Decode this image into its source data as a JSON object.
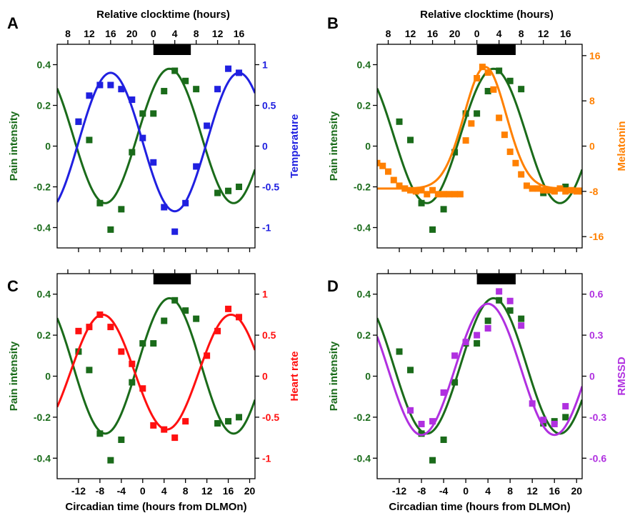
{
  "chart_data": [
    {
      "type": "line",
      "panel": "A",
      "top_label": "Relative clocktime (hours)",
      "top_ticks": [
        "8",
        "12",
        "16",
        "20",
        "0",
        "4",
        "8",
        "12",
        "16"
      ],
      "top_tick_x": [
        -14,
        -10,
        -6,
        -2,
        2,
        6,
        10,
        14,
        18
      ],
      "bottom_label": "",
      "bottom_ticks": [],
      "xlim": [
        -16,
        21
      ],
      "night_bar": [
        2,
        9
      ],
      "ylabel": "Pain intensity",
      "ylim": [
        -0.5,
        0.5
      ],
      "yticks": [
        "-0.4",
        "-0.2",
        "0",
        "0.2",
        "0.4"
      ],
      "ytick_values": [
        -0.4,
        -0.2,
        0,
        0.2,
        0.4
      ],
      "y2label": "Temperature",
      "y2lim": [
        -1.25,
        1.25
      ],
      "y2ticks": [
        "-1",
        "-0.5",
        "0",
        "0.5",
        "1"
      ],
      "y2tick_values": [
        -1,
        -0.5,
        0,
        0.5,
        1
      ],
      "series": [
        {
          "axis": "left",
          "color": "#1a6b1a",
          "curve": {
            "mesor": 0.05,
            "amplitude": 0.33,
            "peak": 5,
            "period": 24
          },
          "points": [
            [
              -12,
              0.12
            ],
            [
              -10,
              0.03
            ],
            [
              -8,
              -0.28
            ],
            [
              -6,
              -0.41
            ],
            [
              -4,
              -0.31
            ],
            [
              -2,
              -0.03
            ],
            [
              0,
              0.16
            ],
            [
              2,
              0.16
            ],
            [
              4,
              0.27
            ],
            [
              6,
              0.37
            ],
            [
              8,
              0.32
            ],
            [
              10,
              0.28
            ],
            [
              14,
              -0.23
            ],
            [
              16,
              -0.22
            ],
            [
              18,
              -0.2
            ]
          ]
        },
        {
          "axis": "right",
          "color": "#2020e0",
          "curve": {
            "mesor": 0.05,
            "amplitude": 0.85,
            "peak": -6,
            "period": 24
          },
          "points": [
            [
              -12,
              0.3
            ],
            [
              -10,
              0.62
            ],
            [
              -8,
              0.75
            ],
            [
              -6,
              0.75
            ],
            [
              -4,
              0.7
            ],
            [
              -2,
              0.57
            ],
            [
              0,
              0.1
            ],
            [
              2,
              -0.2
            ],
            [
              4,
              -0.75
            ],
            [
              6,
              -1.05
            ],
            [
              8,
              -0.7
            ],
            [
              10,
              -0.25
            ],
            [
              12,
              0.25
            ],
            [
              14,
              0.7
            ],
            [
              16,
              0.95
            ],
            [
              18,
              0.9
            ]
          ]
        }
      ]
    },
    {
      "type": "line",
      "panel": "B",
      "top_label": "Relative clocktime (hours)",
      "top_ticks": [
        "8",
        "12",
        "16",
        "20",
        "0",
        "4",
        "8",
        "12",
        "16"
      ],
      "top_tick_x": [
        -14,
        -10,
        -6,
        -2,
        2,
        6,
        10,
        14,
        18
      ],
      "bottom_label": "",
      "bottom_ticks": [],
      "xlim": [
        -16,
        21
      ],
      "night_bar": [
        2,
        9
      ],
      "ylabel": "Pain intensity",
      "ylim": [
        -0.5,
        0.5
      ],
      "yticks": [
        "-0.4",
        "-0.2",
        "0",
        "0.2",
        "0.4"
      ],
      "ytick_values": [
        -0.4,
        -0.2,
        0,
        0.2,
        0.4
      ],
      "y2label": "Melatonin",
      "y2lim": [
        -18,
        18
      ],
      "y2ticks": [
        "-16",
        "-8",
        "0",
        "8",
        "16"
      ],
      "y2tick_values": [
        -16,
        -8,
        0,
        8,
        16
      ],
      "series": [
        {
          "axis": "left",
          "color": "#1a6b1a",
          "curve": {
            "mesor": 0.05,
            "amplitude": 0.33,
            "peak": 5,
            "period": 24
          },
          "points": [
            [
              -12,
              0.12
            ],
            [
              -10,
              0.03
            ],
            [
              -8,
              -0.28
            ],
            [
              -6,
              -0.41
            ],
            [
              -4,
              -0.31
            ],
            [
              -2,
              -0.03
            ],
            [
              0,
              0.16
            ],
            [
              2,
              0.16
            ],
            [
              4,
              0.27
            ],
            [
              6,
              0.37
            ],
            [
              8,
              0.32
            ],
            [
              10,
              0.28
            ],
            [
              14,
              -0.23
            ],
            [
              16,
              -0.22
            ],
            [
              18,
              -0.2
            ]
          ]
        },
        {
          "axis": "right",
          "color": "#ff8000",
          "curve": {
            "baseline": -7.5,
            "peak_value": 14,
            "peak": 3.5,
            "width": 3.8
          },
          "points": [
            [
              -16,
              -3
            ],
            [
              -15,
              -3.5
            ],
            [
              -14,
              -4.5
            ],
            [
              -13,
              -6
            ],
            [
              -12,
              -7
            ],
            [
              -11,
              -7.5
            ],
            [
              -10,
              -7.8
            ],
            [
              -9,
              -8
            ],
            [
              -8,
              -7.8
            ],
            [
              -7,
              -8.5
            ],
            [
              -6,
              -7.8
            ],
            [
              -5,
              -8.5
            ],
            [
              -4,
              -8.5
            ],
            [
              -3,
              -8.5
            ],
            [
              -2,
              -8.5
            ],
            [
              -1,
              -8.5
            ],
            [
              0,
              1
            ],
            [
              1,
              4
            ],
            [
              2,
              12
            ],
            [
              3,
              14
            ],
            [
              4,
              13
            ],
            [
              5,
              10
            ],
            [
              6,
              5
            ],
            [
              7,
              2
            ],
            [
              8,
              -1
            ],
            [
              9,
              -3
            ],
            [
              10,
              -5
            ],
            [
              11,
              -7
            ],
            [
              12,
              -7.5
            ],
            [
              13,
              -7.5
            ],
            [
              14,
              -7.8
            ],
            [
              15,
              -7.8
            ],
            [
              16,
              -8
            ],
            [
              17,
              -7.5
            ],
            [
              18,
              -8
            ],
            [
              19,
              -7.8
            ],
            [
              20,
              -8
            ],
            [
              21,
              -8
            ]
          ]
        }
      ]
    },
    {
      "type": "line",
      "panel": "C",
      "top_label": "",
      "top_ticks": [],
      "top_tick_x": [],
      "bottom_label": "Circadian time (hours from DLMOn)",
      "bottom_ticks": [
        "-12",
        "-8",
        "-4",
        "0",
        "4",
        "8",
        "12",
        "16",
        "20"
      ],
      "bottom_tick_x": [
        -12,
        -8,
        -4,
        0,
        4,
        8,
        12,
        16,
        20
      ],
      "xlim": [
        -16,
        21
      ],
      "night_bar": [
        2,
        9
      ],
      "ylabel": "Pain intensity",
      "ylim": [
        -0.5,
        0.5
      ],
      "yticks": [
        "-0.4",
        "-0.2",
        "0",
        "0.2",
        "0.4"
      ],
      "ytick_values": [
        -0.4,
        -0.2,
        0,
        0.2,
        0.4
      ],
      "y2label": "Heart rate",
      "y2lim": [
        -1.25,
        1.25
      ],
      "y2ticks": [
        "-1",
        "-0.5",
        "0",
        "0.5",
        "1"
      ],
      "y2tick_values": [
        -1,
        -0.5,
        0,
        0.5,
        1
      ],
      "series": [
        {
          "axis": "left",
          "color": "#1a6b1a",
          "curve": {
            "mesor": 0.05,
            "amplitude": 0.33,
            "peak": 5,
            "period": 24
          },
          "points": [
            [
              -12,
              0.12
            ],
            [
              -10,
              0.03
            ],
            [
              -8,
              -0.28
            ],
            [
              -6,
              -0.41
            ],
            [
              -4,
              -0.31
            ],
            [
              -2,
              -0.03
            ],
            [
              0,
              0.16
            ],
            [
              2,
              0.16
            ],
            [
              4,
              0.27
            ],
            [
              6,
              0.37
            ],
            [
              8,
              0.32
            ],
            [
              10,
              0.28
            ],
            [
              14,
              -0.23
            ],
            [
              16,
              -0.22
            ],
            [
              18,
              -0.2
            ]
          ]
        },
        {
          "axis": "right",
          "color": "#ff1010",
          "curve": {
            "mesor": 0.05,
            "amplitude": 0.7,
            "peak": -7.5,
            "period": 24
          },
          "points": [
            [
              -12,
              0.55
            ],
            [
              -10,
              0.6
            ],
            [
              -8,
              0.75
            ],
            [
              -6,
              0.6
            ],
            [
              -4,
              0.3
            ],
            [
              -2,
              0.15
            ],
            [
              0,
              -0.15
            ],
            [
              2,
              -0.6
            ],
            [
              4,
              -0.65
            ],
            [
              6,
              -0.75
            ],
            [
              8,
              -0.55
            ],
            [
              12,
              0.25
            ],
            [
              14,
              0.55
            ],
            [
              16,
              0.82
            ],
            [
              18,
              0.72
            ]
          ]
        }
      ]
    },
    {
      "type": "line",
      "panel": "D",
      "top_label": "",
      "top_ticks": [],
      "top_tick_x": [],
      "bottom_label": "Circadian time (hours from DLMOn)",
      "bottom_ticks": [
        "-12",
        "-8",
        "-4",
        "0",
        "4",
        "8",
        "12",
        "16",
        "20"
      ],
      "bottom_tick_x": [
        -12,
        -8,
        -4,
        0,
        4,
        8,
        12,
        16,
        20
      ],
      "xlim": [
        -16,
        21
      ],
      "night_bar": [
        2,
        9
      ],
      "ylabel": "Pain intensity",
      "ylim": [
        -0.5,
        0.5
      ],
      "yticks": [
        "-0.4",
        "-0.2",
        "0",
        "0.2",
        "0.4"
      ],
      "ytick_values": [
        -0.4,
        -0.2,
        0,
        0.2,
        0.4
      ],
      "y2label": "RMSSD",
      "y2lim": [
        -0.75,
        0.75
      ],
      "y2ticks": [
        "-0.6",
        "-0.3",
        "0",
        "0.3",
        "0.6"
      ],
      "y2tick_values": [
        -0.6,
        -0.3,
        0,
        0.3,
        0.6
      ],
      "series": [
        {
          "axis": "left",
          "color": "#1a6b1a",
          "curve": {
            "mesor": 0.05,
            "amplitude": 0.33,
            "peak": 5,
            "period": 24
          },
          "points": [
            [
              -12,
              0.12
            ],
            [
              -10,
              0.03
            ],
            [
              -8,
              -0.28
            ],
            [
              -6,
              -0.41
            ],
            [
              -4,
              -0.31
            ],
            [
              -2,
              -0.03
            ],
            [
              0,
              0.16
            ],
            [
              2,
              0.16
            ],
            [
              4,
              0.27
            ],
            [
              6,
              0.37
            ],
            [
              8,
              0.32
            ],
            [
              10,
              0.28
            ],
            [
              14,
              -0.23
            ],
            [
              16,
              -0.22
            ],
            [
              18,
              -0.2
            ]
          ]
        },
        {
          "axis": "right",
          "color": "#b030e0",
          "curve": {
            "mesor": 0.05,
            "amplitude": 0.48,
            "peak": 4,
            "period": 24
          },
          "points": [
            [
              -10,
              -0.25
            ],
            [
              -8,
              -0.35
            ],
            [
              -6,
              -0.33
            ],
            [
              -4,
              -0.12
            ],
            [
              -2,
              0.15
            ],
            [
              0,
              0.25
            ],
            [
              2,
              0.3
            ],
            [
              4,
              0.35
            ],
            [
              6,
              0.62
            ],
            [
              8,
              0.55
            ],
            [
              10,
              0.37
            ],
            [
              12,
              -0.2
            ],
            [
              14,
              -0.32
            ],
            [
              16,
              -0.35
            ],
            [
              18,
              -0.22
            ]
          ]
        }
      ]
    }
  ]
}
